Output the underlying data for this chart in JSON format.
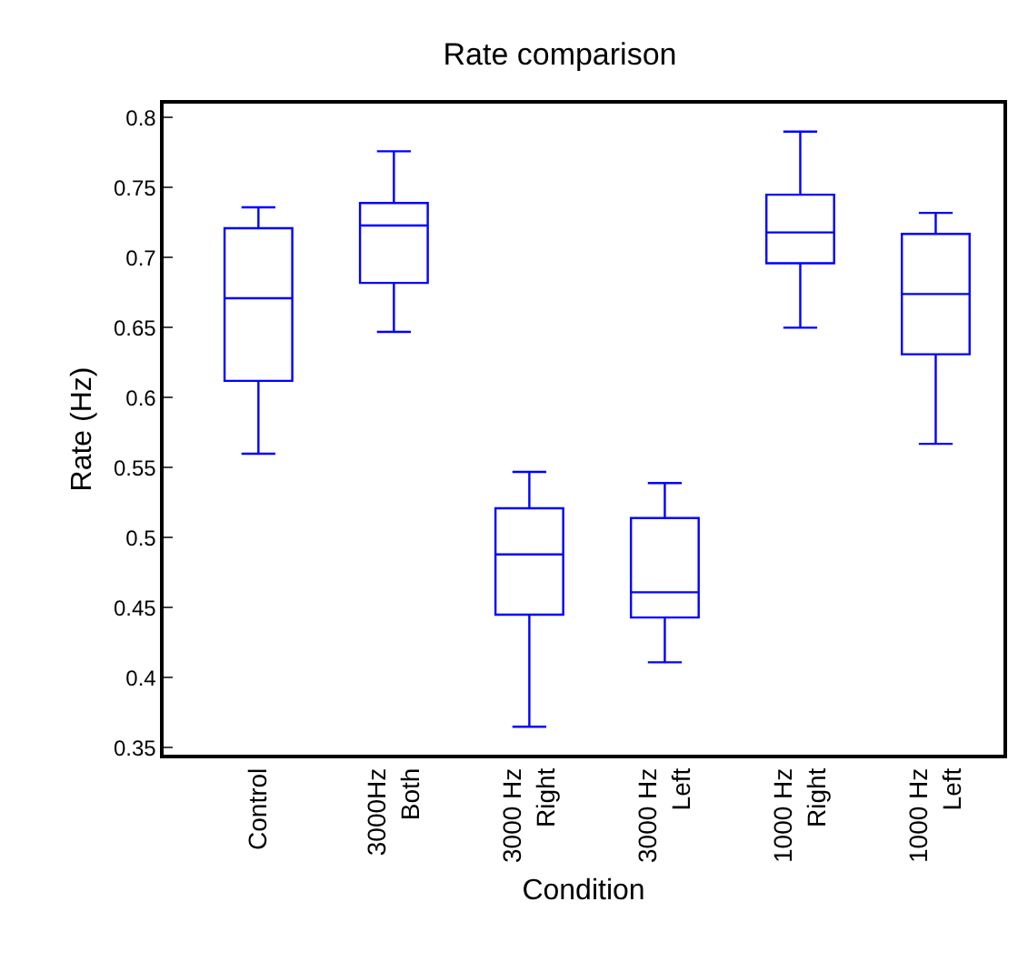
{
  "chart_data": {
    "type": "box",
    "title": "Rate comparison",
    "xlabel": "Condition",
    "ylabel": "Rate (Hz)",
    "categories": [
      "Control",
      "3000Hz\nBoth",
      "3000 Hz\nRight",
      "3000 Hz\nLeft",
      "1000 Hz\nRight",
      "1000 Hz\nLeft"
    ],
    "color": "#0000ff",
    "boxes": [
      {
        "low": 0.56,
        "q1": 0.612,
        "median": 0.671,
        "q3": 0.721,
        "high": 0.736
      },
      {
        "low": 0.647,
        "q1": 0.682,
        "median": 0.723,
        "q3": 0.739,
        "high": 0.776
      },
      {
        "low": 0.365,
        "q1": 0.445,
        "median": 0.488,
        "q3": 0.521,
        "high": 0.547
      },
      {
        "low": 0.411,
        "q1": 0.443,
        "median": 0.461,
        "q3": 0.514,
        "high": 0.539
      },
      {
        "low": 0.65,
        "q1": 0.696,
        "median": 0.718,
        "q3": 0.745,
        "high": 0.79
      },
      {
        "low": 0.567,
        "q1": 0.631,
        "median": 0.674,
        "q3": 0.717,
        "high": 0.732
      }
    ],
    "ylim": [
      0.345,
      0.81
    ],
    "yticks": [
      0.35,
      0.4,
      0.45,
      0.5,
      0.55,
      0.6,
      0.65,
      0.7,
      0.75,
      0.8
    ]
  }
}
